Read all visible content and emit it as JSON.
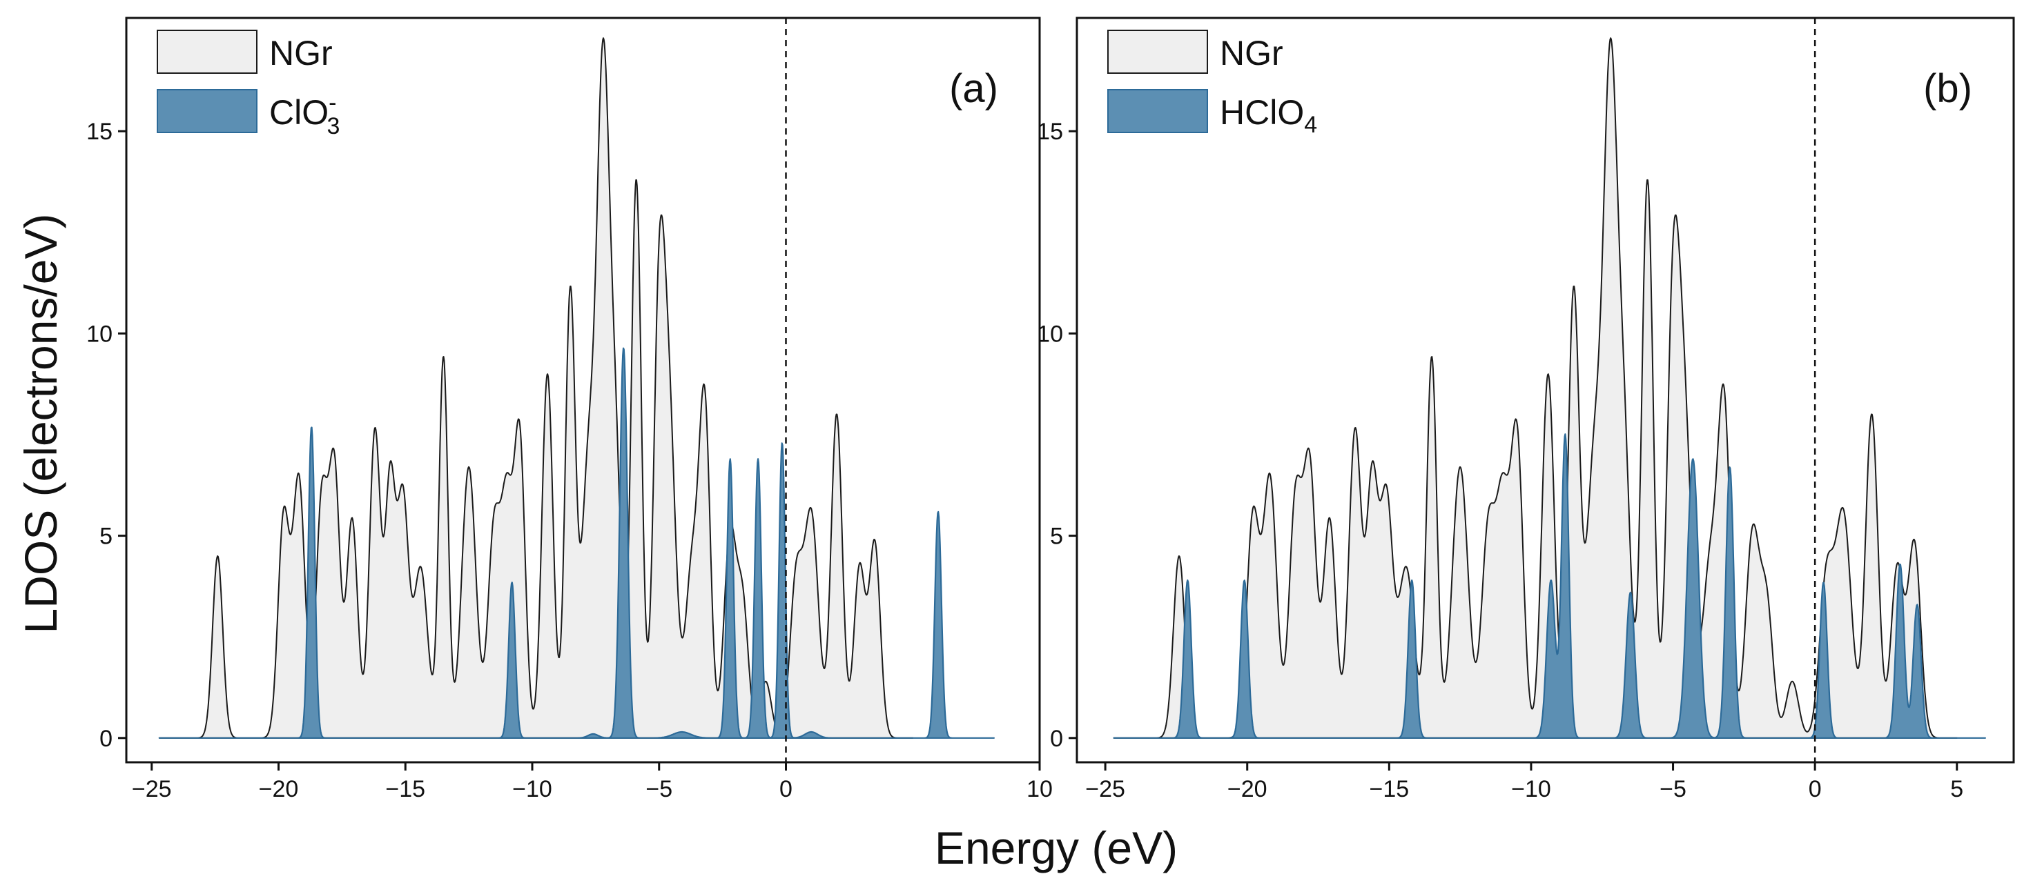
{
  "figure": {
    "xlabel": "Energy (eV)",
    "ylabel": "LDOS (electrons/eV)"
  },
  "colors": {
    "ngr_fill": "#efefef",
    "ngr_line": "#1a1a1a",
    "adsorbate_fill": "#5c8fb3",
    "adsorbate_line": "#2c6a98",
    "fermi_line": "#111111"
  },
  "chart_data": [
    {
      "type": "area",
      "panel_label": "(a)",
      "xlabel": "Energy (eV)",
      "ylabel": "LDOS (electrons/eV)",
      "xlim": [
        -26,
        10
      ],
      "ylim": [
        -0.6,
        17.8
      ],
      "xticks": [
        -25,
        -20,
        -15,
        -10,
        -5,
        0,
        10
      ],
      "xtick_labels": [
        "−25",
        "−20",
        "−15",
        "−10",
        "−5",
        "0",
        "10"
      ],
      "yticks": [
        0,
        5,
        10,
        15
      ],
      "ytick_labels": [
        "0",
        "5",
        "10",
        "15"
      ],
      "fermi_level": 0,
      "legend": [
        {
          "label": "NGr",
          "sub": "",
          "sup": ""
        },
        {
          "label": "ClO",
          "sub": "3",
          "sup": "-"
        }
      ],
      "series": [
        {
          "name": "NGr",
          "x_range": [
            -24.7,
            5.0
          ],
          "peaks": [
            [
              -22.4,
              4.5,
              0.2
            ],
            [
              -19.8,
              5.4,
              0.22
            ],
            [
              -19.2,
              6.4,
              0.24
            ],
            [
              -18.3,
              5.8,
              0.22
            ],
            [
              -17.8,
              6.6,
              0.22
            ],
            [
              -17.1,
              5.4,
              0.22
            ],
            [
              -16.2,
              7.6,
              0.22
            ],
            [
              -15.6,
              6.2,
              0.2
            ],
            [
              -15.1,
              5.8,
              0.22
            ],
            [
              -14.4,
              4.2,
              0.28
            ],
            [
              -13.5,
              9.4,
              0.18
            ],
            [
              -12.5,
              6.7,
              0.28
            ],
            [
              -11.5,
              5.2,
              0.24
            ],
            [
              -11.0,
              5.4,
              0.22
            ],
            [
              -10.5,
              7.4,
              0.22
            ],
            [
              -9.4,
              9.0,
              0.22
            ],
            [
              -8.5,
              11.0,
              0.2
            ],
            [
              -7.8,
              6.4,
              0.26
            ],
            [
              -7.2,
              16.4,
              0.26
            ],
            [
              -6.7,
              6.0,
              0.22
            ],
            [
              -5.9,
              13.8,
              0.2
            ],
            [
              -5.0,
              10.0,
              0.22
            ],
            [
              -4.6,
              7.6,
              0.26
            ],
            [
              -3.7,
              4.2,
              0.26
            ],
            [
              -3.2,
              8.0,
              0.22
            ],
            [
              -2.2,
              5.0,
              0.24
            ],
            [
              -1.7,
              3.2,
              0.22
            ],
            [
              -0.8,
              1.4,
              0.22
            ],
            [
              0.4,
              3.8,
              0.24
            ],
            [
              1.0,
              5.5,
              0.28
            ],
            [
              2.0,
              8.0,
              0.22
            ],
            [
              2.9,
              4.2,
              0.22
            ],
            [
              3.5,
              4.8,
              0.22
            ]
          ]
        },
        {
          "name": "ClO3-",
          "x_range": [
            -24.7,
            8.2
          ],
          "peaks": [
            [
              -18.7,
              7.7,
              0.13
            ],
            [
              -10.8,
              3.85,
              0.13
            ],
            [
              -7.6,
              0.1,
              0.2
            ],
            [
              -6.4,
              9.65,
              0.15
            ],
            [
              -4.1,
              0.15,
              0.35
            ],
            [
              -2.2,
              6.9,
              0.13
            ],
            [
              -1.1,
              6.9,
              0.13
            ],
            [
              -0.15,
              7.3,
              0.12
            ],
            [
              1.0,
              0.15,
              0.25
            ],
            [
              6.0,
              5.6,
              0.13
            ]
          ]
        }
      ]
    },
    {
      "type": "area",
      "panel_label": "(b)",
      "xlabel": "Energy (eV)",
      "ylabel": "LDOS (electrons/eV)",
      "xlim": [
        -26,
        7
      ],
      "ylim": [
        -0.6,
        17.8
      ],
      "xticks": [
        -25,
        -20,
        -15,
        -10,
        -5,
        0,
        5
      ],
      "xtick_labels": [
        "−25",
        "−20",
        "−15",
        "−10",
        "−5",
        "0",
        "5"
      ],
      "yticks": [
        0,
        5,
        10,
        15
      ],
      "ytick_labels": [
        "0",
        "5",
        "10",
        "15"
      ],
      "fermi_level": 0,
      "legend": [
        {
          "label": "NGr",
          "sub": "",
          "sup": ""
        },
        {
          "label": "HClO",
          "sub": "4",
          "sup": ""
        }
      ],
      "series": [
        {
          "name": "NGr",
          "x_range": [
            -24.7,
            5.0
          ],
          "peaks": [
            [
              -22.4,
              4.5,
              0.2
            ],
            [
              -19.8,
              5.4,
              0.22
            ],
            [
              -19.2,
              6.4,
              0.24
            ],
            [
              -18.3,
              5.8,
              0.22
            ],
            [
              -17.8,
              6.6,
              0.22
            ],
            [
              -17.1,
              5.4,
              0.22
            ],
            [
              -16.2,
              7.6,
              0.22
            ],
            [
              -15.6,
              6.2,
              0.2
            ],
            [
              -15.1,
              5.8,
              0.22
            ],
            [
              -14.4,
              4.2,
              0.28
            ],
            [
              -13.5,
              9.4,
              0.18
            ],
            [
              -12.5,
              6.7,
              0.28
            ],
            [
              -11.5,
              5.2,
              0.24
            ],
            [
              -11.0,
              5.4,
              0.22
            ],
            [
              -10.5,
              7.4,
              0.22
            ],
            [
              -9.4,
              9.0,
              0.22
            ],
            [
              -8.5,
              11.0,
              0.2
            ],
            [
              -7.8,
              6.4,
              0.26
            ],
            [
              -7.2,
              16.4,
              0.26
            ],
            [
              -6.7,
              6.0,
              0.22
            ],
            [
              -5.9,
              13.8,
              0.2
            ],
            [
              -5.0,
              10.0,
              0.22
            ],
            [
              -4.6,
              7.6,
              0.26
            ],
            [
              -3.7,
              4.2,
              0.26
            ],
            [
              -3.2,
              8.0,
              0.22
            ],
            [
              -2.2,
              5.0,
              0.24
            ],
            [
              -1.7,
              3.2,
              0.22
            ],
            [
              -0.8,
              1.4,
              0.22
            ],
            [
              0.4,
              3.8,
              0.24
            ],
            [
              1.0,
              5.5,
              0.28
            ],
            [
              2.0,
              8.0,
              0.22
            ],
            [
              2.9,
              4.2,
              0.22
            ],
            [
              3.5,
              4.8,
              0.22
            ]
          ]
        },
        {
          "name": "HClO4",
          "x_range": [
            -24.7,
            6.0
          ],
          "peaks": [
            [
              -22.1,
              3.9,
              0.13
            ],
            [
              -20.1,
              3.9,
              0.13
            ],
            [
              -14.2,
              3.9,
              0.13
            ],
            [
              -9.3,
              3.9,
              0.15
            ],
            [
              -8.8,
              7.5,
              0.13
            ],
            [
              -6.5,
              3.6,
              0.15
            ],
            [
              -4.3,
              6.9,
              0.2
            ],
            [
              -3.0,
              6.7,
              0.14
            ],
            [
              0.3,
              3.85,
              0.13
            ],
            [
              3.0,
              4.3,
              0.14
            ],
            [
              3.6,
              3.3,
              0.14
            ]
          ]
        }
      ]
    }
  ]
}
